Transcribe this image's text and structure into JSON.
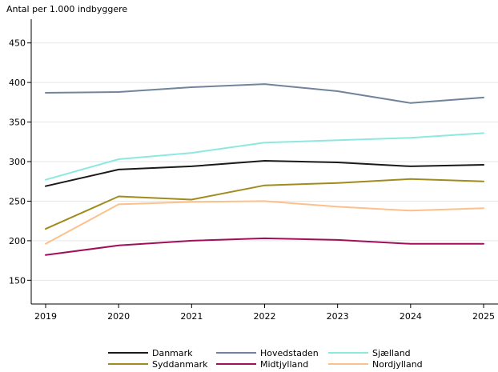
{
  "chart_data": {
    "type": "line",
    "title": "",
    "ylabel": "Antal per 1.000 indbyggere",
    "xlabel": "",
    "x": [
      2019,
      2020,
      2021,
      2022,
      2023,
      2024,
      2025
    ],
    "ylim": [
      120,
      480
    ],
    "yticks": [
      150,
      200,
      250,
      300,
      350,
      400,
      450
    ],
    "grid": true,
    "legend_position": "bottom",
    "series": [
      {
        "name": "Danmark",
        "color": "#1a1a1a",
        "values": [
          269,
          290,
          294,
          301,
          299,
          294,
          296
        ]
      },
      {
        "name": "Hovedstaden",
        "color": "#71849c",
        "values": [
          387,
          388,
          394,
          398,
          389,
          374,
          381
        ]
      },
      {
        "name": "Sjælland",
        "color": "#8de8e0",
        "values": [
          277,
          303,
          311,
          324,
          327,
          330,
          336
        ]
      },
      {
        "name": "Syddanmark",
        "color": "#a08c1e",
        "values": [
          215,
          256,
          252,
          270,
          273,
          278,
          275
        ]
      },
      {
        "name": "Midtjylland",
        "color": "#a0105a",
        "values": [
          182,
          194,
          200,
          203,
          201,
          196,
          196
        ]
      },
      {
        "name": "Nordjylland",
        "color": "#fcc08c",
        "values": [
          196,
          246,
          249,
          250,
          243,
          238,
          241
        ]
      }
    ]
  }
}
